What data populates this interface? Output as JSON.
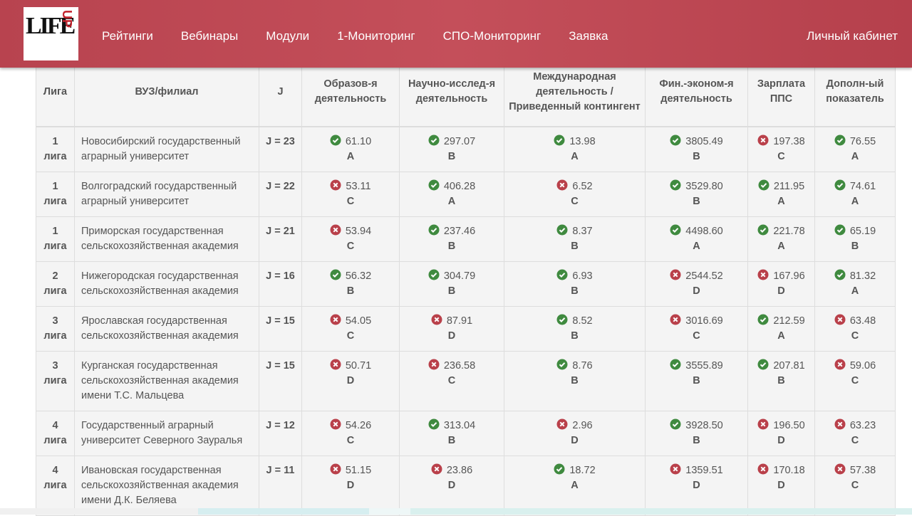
{
  "nav": {
    "logo": {
      "main": "LIFE",
      "accent": "UP"
    },
    "items": [
      "Рейтинги",
      "Вебинары",
      "Модули",
      "1-Мониторинг",
      "СПО-Мониторинг",
      "Заявка"
    ],
    "account": "Личный кабинет"
  },
  "table": {
    "headers": [
      "Лига",
      "ВУЗ/филиал",
      "J",
      "Образов-я деятельность",
      "Научно-исслед-я деятельность",
      "Международная деятельность / Приведенный контингент",
      "Фин.-эконом-я деятельность",
      "Зарплата ППС",
      "Дополн-ый показатель"
    ],
    "rows": [
      {
        "league": [
          "1",
          "лига"
        ],
        "name": "Новосибирский государственный аграрный университет",
        "j": "J = 23",
        "cells": [
          {
            "status": "ok",
            "value": "61.10",
            "grade": "A"
          },
          {
            "status": "ok",
            "value": "297.07",
            "grade": "B"
          },
          {
            "status": "ok",
            "value": "13.98",
            "grade": "A"
          },
          {
            "status": "ok",
            "value": "3805.49",
            "grade": "B"
          },
          {
            "status": "bad",
            "value": "197.38",
            "grade": "C"
          },
          {
            "status": "ok",
            "value": "76.55",
            "grade": "A"
          }
        ]
      },
      {
        "league": [
          "1",
          "лига"
        ],
        "name": "Волгоградский государственный аграрный университет",
        "j": "J = 22",
        "cells": [
          {
            "status": "bad",
            "value": "53.11",
            "grade": "C"
          },
          {
            "status": "ok",
            "value": "406.28",
            "grade": "A"
          },
          {
            "status": "bad",
            "value": "6.52",
            "grade": "C"
          },
          {
            "status": "ok",
            "value": "3529.80",
            "grade": "B"
          },
          {
            "status": "ok",
            "value": "211.95",
            "grade": "A"
          },
          {
            "status": "ok",
            "value": "74.61",
            "grade": "A"
          }
        ]
      },
      {
        "league": [
          "1",
          "лига"
        ],
        "name": "Приморская государственная сельскохозяйственная академия",
        "j": "J = 21",
        "cells": [
          {
            "status": "bad",
            "value": "53.94",
            "grade": "C"
          },
          {
            "status": "ok",
            "value": "237.46",
            "grade": "B"
          },
          {
            "status": "ok",
            "value": "8.37",
            "grade": "B"
          },
          {
            "status": "ok",
            "value": "4498.60",
            "grade": "A"
          },
          {
            "status": "ok",
            "value": "221.78",
            "grade": "A"
          },
          {
            "status": "ok",
            "value": "65.19",
            "grade": "B"
          }
        ]
      },
      {
        "league": [
          "2",
          "лига"
        ],
        "name": "Нижегородская государственная сельскохозяйственная академия",
        "j": "J = 16",
        "cells": [
          {
            "status": "ok",
            "value": "56.32",
            "grade": "B"
          },
          {
            "status": "ok",
            "value": "304.79",
            "grade": "B"
          },
          {
            "status": "ok",
            "value": "6.93",
            "grade": "B"
          },
          {
            "status": "bad",
            "value": "2544.52",
            "grade": "D"
          },
          {
            "status": "bad",
            "value": "167.96",
            "grade": "D"
          },
          {
            "status": "ok",
            "value": "81.32",
            "grade": "A"
          }
        ]
      },
      {
        "league": [
          "3",
          "лига"
        ],
        "name": "Ярославская государственная сельскохозяйственная академия",
        "j": "J = 15",
        "cells": [
          {
            "status": "bad",
            "value": "54.05",
            "grade": "C"
          },
          {
            "status": "bad",
            "value": "87.91",
            "grade": "D"
          },
          {
            "status": "ok",
            "value": "8.52",
            "grade": "B"
          },
          {
            "status": "bad",
            "value": "3016.69",
            "grade": "C"
          },
          {
            "status": "ok",
            "value": "212.59",
            "grade": "A"
          },
          {
            "status": "bad",
            "value": "63.48",
            "grade": "C"
          }
        ]
      },
      {
        "league": [
          "3",
          "лига"
        ],
        "name": "Курганская государственная сельскохозяйственная академия имени Т.С. Мальцева",
        "j": "J = 15",
        "cells": [
          {
            "status": "bad",
            "value": "50.71",
            "grade": "D"
          },
          {
            "status": "bad",
            "value": "236.58",
            "grade": "C"
          },
          {
            "status": "ok",
            "value": "8.76",
            "grade": "B"
          },
          {
            "status": "ok",
            "value": "3555.89",
            "grade": "B"
          },
          {
            "status": "ok",
            "value": "207.81",
            "grade": "B"
          },
          {
            "status": "bad",
            "value": "59.06",
            "grade": "C"
          }
        ]
      },
      {
        "league": [
          "4",
          "лига"
        ],
        "name": "Государственный аграрный университет Северного Зауралья",
        "j": "J = 12",
        "cells": [
          {
            "status": "bad",
            "value": "54.26",
            "grade": "C"
          },
          {
            "status": "ok",
            "value": "313.04",
            "grade": "B"
          },
          {
            "status": "bad",
            "value": "2.96",
            "grade": "D"
          },
          {
            "status": "ok",
            "value": "3928.50",
            "grade": "B"
          },
          {
            "status": "bad",
            "value": "196.50",
            "grade": "D"
          },
          {
            "status": "bad",
            "value": "63.23",
            "grade": "C"
          }
        ]
      },
      {
        "league": [
          "4",
          "лига"
        ],
        "name": "Ивановская государственная сельскохозяйственная академия имени Д.К. Беляева",
        "j": "J = 11",
        "cells": [
          {
            "status": "bad",
            "value": "51.15",
            "grade": "D"
          },
          {
            "status": "bad",
            "value": "23.86",
            "grade": "D"
          },
          {
            "status": "ok",
            "value": "18.72",
            "grade": "A"
          },
          {
            "status": "bad",
            "value": "1359.51",
            "grade": "D"
          },
          {
            "status": "bad",
            "value": "170.18",
            "grade": "D"
          },
          {
            "status": "bad",
            "value": "57.38",
            "grade": "C"
          }
        ]
      }
    ]
  }
}
